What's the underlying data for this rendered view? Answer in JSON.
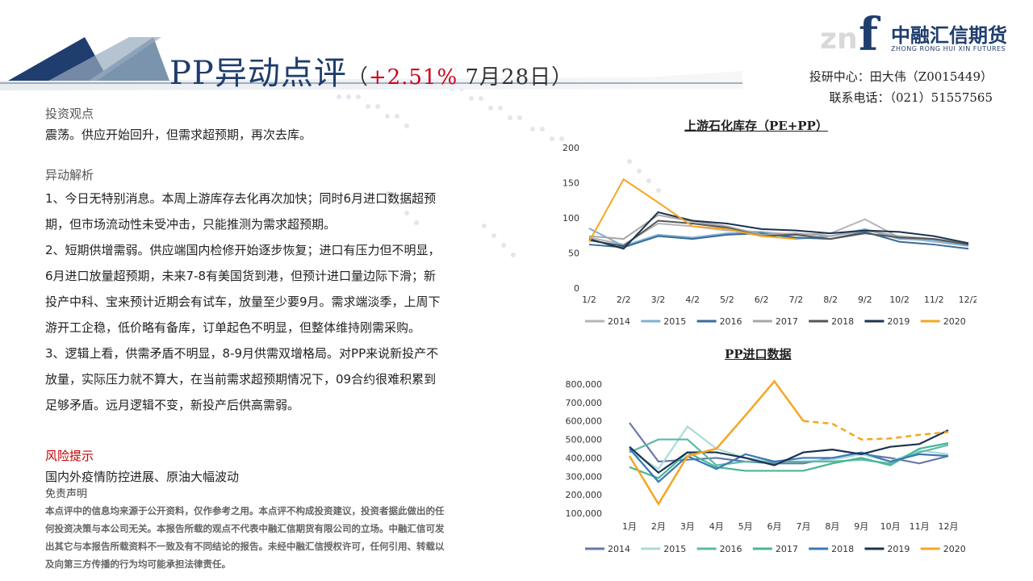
{
  "header": {
    "title_main": "PP异动点评",
    "title_open": "（",
    "title_change": "+2.51%",
    "title_date": " 7月28日）",
    "logo_mark": "f",
    "logo_zf": "zn",
    "logo_cn": "中融汇信期货",
    "logo_en": "ZHONG RONG HUI XIN FUTURES",
    "contact_line1": "投研中心：田大伟（Z0015449）",
    "contact_line2": "联系电话：（021）51557565"
  },
  "colors": {
    "brand": "#1f3d6e",
    "accent_red": "#d0021b",
    "risk_red": "#c00000"
  },
  "view": {
    "title": "投资观点",
    "text": "震荡。供应开始回升，但需求超预期，再次去库。"
  },
  "analysis": {
    "title": "异动解析",
    "p1_l1": "1、今日无特别消息。本周上游库存去化再次加快；同时6月进口数据超预",
    "p1_l2": "期，但市场流动性未受冲击，只能推测为需求超预期。",
    "p2_l1": "2、短期供增需弱。供应端国内检修开始逐步恢复；进口有压力但不明显，",
    "p2_l2": "6月进口放量超预期，未来7-8有美国货到港，但预计进口量边际下滑；新",
    "p2_l3": "投产中科、宝来预计近期会有试车，放量至少要9月。需求端淡季，上周下",
    "p2_l4": "游开工企稳，低价略有备库，订单起色不明显，但整体维持刚需采购。",
    "p3_l1": "3、逻辑上看，供需矛盾不明显，8-9月供需双增格局。对PP来说新投产不",
    "p3_l2": "放量，实际压力就不算大，在当前需求超预期情况下，09合约很难积累到",
    "p3_l3": "足够矛盾。远月逻辑不变，新投产后供高需弱。"
  },
  "risk": {
    "title": "风险提示",
    "text": "国内外疫情防控进展、原油大幅波动"
  },
  "disclaimer": {
    "title": "免责声明",
    "l1": "本点评中的信息均来源于公开资料，仅作参考之用。本点评不构成投资建议，投资者据此做出的任",
    "l2": "何投资决策与本公司无关。本报告所载的观点不代表中融汇信期货有限公司的立场。中融汇信可发",
    "l3": "出其它与本报告所载资料不一致及有不同结论的报告。未经中融汇信授权许可，任何引用、转载以",
    "l4": "及向第三方传播的行为均可能承担法律责任。"
  },
  "chart_data": [
    {
      "type": "line",
      "title": "上游石化库存（PE+PP）",
      "categories": [
        "1/2",
        "2/2",
        "3/2",
        "4/2",
        "5/2",
        "6/2",
        "7/2",
        "8/2",
        "9/2",
        "10/2",
        "11/2",
        "12/2"
      ],
      "y_ticks": [
        "0",
        "50",
        "100",
        "150",
        "200"
      ],
      "ylim": [
        0,
        200
      ],
      "legend_position": "bottom",
      "series": [
        {
          "name": "2014",
          "color": "#b4b4bc",
          "values": [
            72,
            62,
            92,
            88,
            82,
            80,
            76,
            78,
            98,
            72,
            66,
            60
          ]
        },
        {
          "name": "2015",
          "color": "#7fb1d3",
          "values": [
            85,
            60,
            76,
            72,
            78,
            80,
            70,
            74,
            84,
            70,
            68,
            60
          ]
        },
        {
          "name": "2016",
          "color": "#3a6a9a",
          "values": [
            62,
            58,
            74,
            70,
            76,
            78,
            72,
            70,
            80,
            66,
            62,
            56
          ]
        },
        {
          "name": "2017",
          "color": "#a6a6a6",
          "values": [
            74,
            70,
            104,
            95,
            88,
            76,
            78,
            74,
            82,
            74,
            70,
            64
          ]
        },
        {
          "name": "2018",
          "color": "#555555",
          "values": [
            68,
            60,
            96,
            92,
            86,
            74,
            76,
            70,
            78,
            72,
            70,
            62
          ]
        },
        {
          "name": "2019",
          "color": "#1b3350",
          "values": [
            70,
            56,
            108,
            96,
            92,
            84,
            82,
            78,
            82,
            80,
            74,
            64
          ]
        },
        {
          "name": "2020",
          "color": "#f5a623",
          "values": [
            66,
            155,
            122,
            88,
            84,
            74,
            70,
            null,
            null,
            null,
            null,
            null
          ]
        }
      ]
    },
    {
      "type": "line",
      "title": "PP进口数据",
      "categories": [
        "1月",
        "2月",
        "3月",
        "4月",
        "5月",
        "6月",
        "7月",
        "8月",
        "9月",
        "10月",
        "11月",
        "12月"
      ],
      "y_ticks": [
        "100,000",
        "200,000",
        "300,000",
        "400,000",
        "500,000",
        "600,000",
        "700,000",
        "800,000"
      ],
      "ylim": [
        100000,
        800000
      ],
      "legend_position": "bottom",
      "series": [
        {
          "name": "2014",
          "color": "#6a77a8",
          "values": [
            590000,
            380000,
            390000,
            400000,
            380000,
            370000,
            370000,
            400000,
            420000,
            400000,
            370000,
            410000
          ]
        },
        {
          "name": "2015",
          "color": "#a8ddd8",
          "values": [
            440000,
            340000,
            570000,
            450000,
            400000,
            380000,
            380000,
            390000,
            420000,
            380000,
            440000,
            420000
          ]
        },
        {
          "name": "2016",
          "color": "#5bb9a7",
          "values": [
            430000,
            500000,
            500000,
            360000,
            380000,
            380000,
            380000,
            380000,
            390000,
            370000,
            430000,
            470000
          ]
        },
        {
          "name": "2017",
          "color": "#49b597",
          "values": [
            350000,
            290000,
            430000,
            350000,
            330000,
            330000,
            330000,
            370000,
            400000,
            360000,
            450000,
            480000
          ]
        },
        {
          "name": "2018",
          "color": "#3a78b5",
          "values": [
            450000,
            270000,
            410000,
            340000,
            420000,
            380000,
            400000,
            400000,
            430000,
            380000,
            420000,
            410000
          ]
        },
        {
          "name": "2019",
          "color": "#1b3350",
          "values": [
            460000,
            320000,
            430000,
            430000,
            400000,
            360000,
            430000,
            445000,
            420000,
            460000,
            475000,
            550000
          ]
        },
        {
          "name": "2020",
          "color": "#f5a623",
          "values": [
            410000,
            150000,
            410000,
            450000,
            630000,
            815000,
            600000,
            585000,
            500000,
            505000,
            525000,
            540000
          ],
          "dashed_from_index": 6
        }
      ]
    }
  ]
}
